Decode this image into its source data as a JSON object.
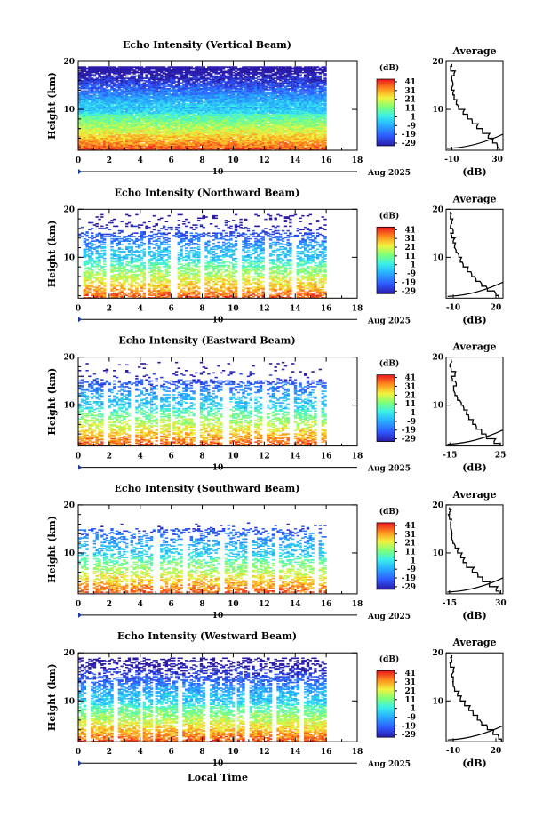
{
  "chart_data": {
    "type": "heatmap",
    "shared": {
      "ylabel": "Height (km)",
      "x_ticks": [
        "0",
        "2",
        "4",
        "6",
        "8",
        "10",
        "12",
        "14",
        "16",
        "18"
      ],
      "xlim": [
        0,
        18
      ],
      "date_marker": "10",
      "date_label": "Aug 2025",
      "xlabel": "Local Time",
      "colorbar_unit": "(dB)",
      "colorbar_ticks": [
        "41",
        "31",
        "21",
        "11",
        "1",
        "-9",
        "-19",
        "-29"
      ],
      "colorbar_range": [
        -29,
        41
      ],
      "profile_title": "Average",
      "profile_unit": "(dB)",
      "y_ticks": [
        "20",
        "10"
      ],
      "ylim": [
        1.5,
        20
      ],
      "data_x_end": 16
    },
    "panels": [
      {
        "title": "Echo Intensity (Vertical Beam)",
        "coverage": 1.0,
        "profile_ticks": [
          "-10",
          "30"
        ],
        "profile_xlim": [
          -15,
          35
        ],
        "profile": [
          [
            1.6,
            32
          ],
          [
            2.5,
            30
          ],
          [
            3.5,
            26
          ],
          [
            4.5,
            22
          ],
          [
            5.5,
            17
          ],
          [
            6.5,
            12
          ],
          [
            7.5,
            8
          ],
          [
            8.5,
            4
          ],
          [
            9.5,
            0
          ],
          [
            10.5,
            -4
          ],
          [
            11.5,
            -6
          ],
          [
            12.5,
            -8
          ],
          [
            13.5,
            -9
          ],
          [
            14.5,
            -10
          ],
          [
            15.5,
            -9
          ],
          [
            16.5,
            -10
          ],
          [
            17.5,
            -8
          ],
          [
            18.5,
            -11
          ],
          [
            19.5,
            -10
          ]
        ]
      },
      {
        "title": "Echo Intensity (Northward Beam)",
        "coverage": 0.55,
        "profile_ticks": [
          "-10",
          "20"
        ],
        "profile_xlim": [
          -15,
          25
        ],
        "profile": [
          [
            1.6,
            22
          ],
          [
            2.5,
            20
          ],
          [
            3.5,
            14
          ],
          [
            4.5,
            10
          ],
          [
            5.5,
            6
          ],
          [
            6.5,
            3
          ],
          [
            7.5,
            0
          ],
          [
            8.5,
            -3
          ],
          [
            9.5,
            -5
          ],
          [
            10.5,
            -6
          ],
          [
            11.5,
            -8
          ],
          [
            12.5,
            -9
          ],
          [
            13.5,
            -10
          ],
          [
            14.5,
            -11
          ],
          [
            15.5,
            -10
          ],
          [
            16.5,
            -12
          ],
          [
            17.5,
            -11
          ],
          [
            18.5,
            -12
          ],
          [
            19.5,
            -12
          ]
        ]
      },
      {
        "title": "Echo Intensity (Eastward Beam)",
        "coverage": 0.5,
        "profile_ticks": [
          "-15",
          "25"
        ],
        "profile_xlim": [
          -18,
          27
        ],
        "profile": [
          [
            1.6,
            24
          ],
          [
            2.5,
            20
          ],
          [
            3.5,
            14
          ],
          [
            4.5,
            10
          ],
          [
            5.5,
            6
          ],
          [
            6.5,
            3
          ],
          [
            7.5,
            0
          ],
          [
            8.5,
            -2
          ],
          [
            9.5,
            -4
          ],
          [
            10.5,
            -6
          ],
          [
            11.5,
            -9
          ],
          [
            12.5,
            -11
          ],
          [
            13.5,
            -12
          ],
          [
            14.5,
            -10
          ],
          [
            15.5,
            -13
          ],
          [
            16.5,
            -11
          ],
          [
            17.5,
            -14
          ],
          [
            18.5,
            -15
          ],
          [
            19.5,
            -14
          ]
        ]
      },
      {
        "title": "Echo Intensity (Southward Beam)",
        "coverage": 0.45,
        "profile_ticks": [
          "-15",
          "30"
        ],
        "profile_xlim": [
          -18,
          32
        ],
        "profile": [
          [
            1.6,
            29
          ],
          [
            2.5,
            26
          ],
          [
            3.5,
            20
          ],
          [
            4.5,
            14
          ],
          [
            5.5,
            10
          ],
          [
            6.5,
            5
          ],
          [
            7.5,
            0
          ],
          [
            8.5,
            -3
          ],
          [
            9.5,
            -5
          ],
          [
            10.5,
            -8
          ],
          [
            11.5,
            -10
          ],
          [
            12.5,
            -12
          ],
          [
            13.5,
            -13
          ],
          [
            14.5,
            -13
          ],
          [
            15.5,
            -14
          ],
          [
            16.5,
            -14
          ],
          [
            17.5,
            -15
          ],
          [
            18.5,
            -15
          ],
          [
            19.5,
            -15
          ]
        ]
      },
      {
        "title": "Echo Intensity (Westward Beam)",
        "coverage": 0.7,
        "profile_ticks": [
          "-10",
          "20"
        ],
        "profile_xlim": [
          -15,
          25
        ],
        "profile": [
          [
            1.6,
            24
          ],
          [
            2.5,
            22
          ],
          [
            3.5,
            18
          ],
          [
            4.5,
            14
          ],
          [
            5.5,
            10
          ],
          [
            6.5,
            7
          ],
          [
            7.5,
            4
          ],
          [
            8.5,
            1
          ],
          [
            9.5,
            -2
          ],
          [
            10.5,
            -5
          ],
          [
            11.5,
            -7
          ],
          [
            12.5,
            -9
          ],
          [
            13.5,
            -10
          ],
          [
            14.5,
            -10
          ],
          [
            15.5,
            -11
          ],
          [
            16.5,
            -10
          ],
          [
            17.5,
            -12
          ],
          [
            18.5,
            -11
          ],
          [
            19.5,
            -11
          ]
        ]
      }
    ]
  }
}
